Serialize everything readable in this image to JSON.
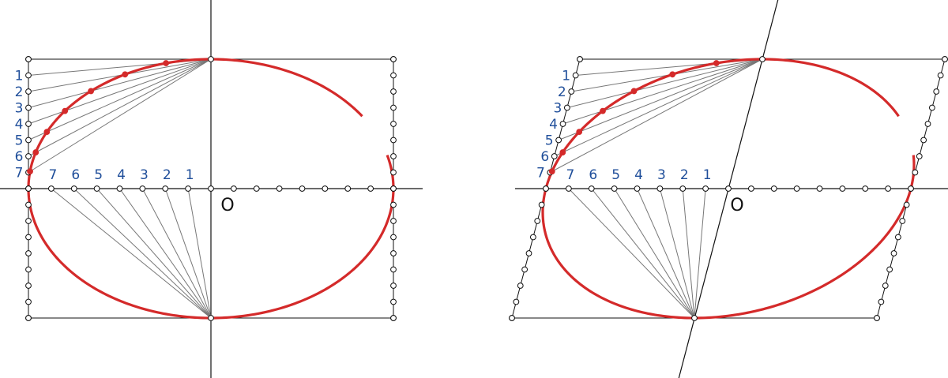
{
  "figures": [
    {
      "edge_labels": [
        "1",
        "2",
        "3",
        "4",
        "5",
        "6",
        "7"
      ],
      "axis_labels": [
        "1",
        "2",
        "3",
        "4",
        "5",
        "6",
        "7"
      ],
      "center_label": "O"
    },
    {
      "edge_labels": [
        "1",
        "2",
        "3",
        "4",
        "5",
        "6",
        "7"
      ],
      "axis_labels": [
        "1",
        "2",
        "3",
        "4",
        "5",
        "6",
        "7"
      ],
      "center_label": "O"
    }
  ]
}
